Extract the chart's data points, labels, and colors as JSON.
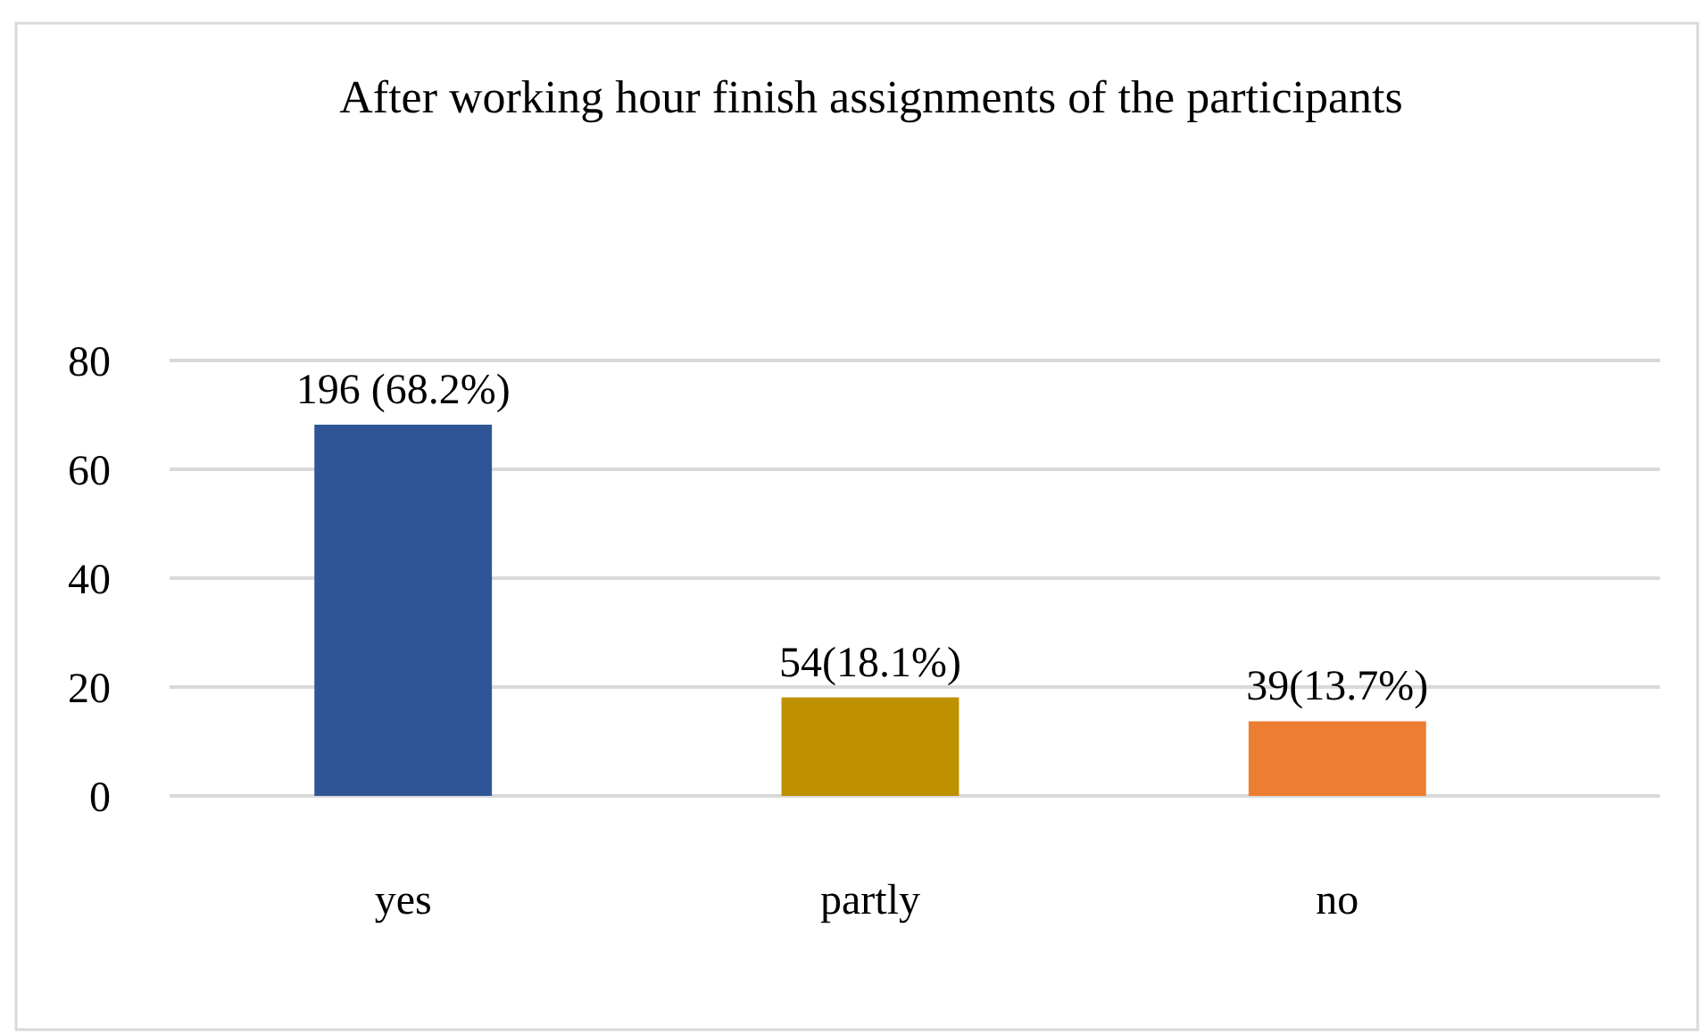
{
  "chart_data": {
    "type": "bar",
    "title": "After working hour finish assignments of the participants",
    "categories": [
      "yes",
      "partly",
      "no"
    ],
    "values": [
      68.2,
      18.1,
      13.7
    ],
    "colors": [
      "#2f5597",
      "#bf9000",
      "#ed7d31"
    ],
    "value_labels": [
      "196 (68.2%)",
      "54(18.1%)",
      "39(13.7%)"
    ],
    "ylim": [
      0,
      80
    ],
    "yticks": [
      0,
      20,
      40,
      60,
      80
    ],
    "grid": "y"
  }
}
